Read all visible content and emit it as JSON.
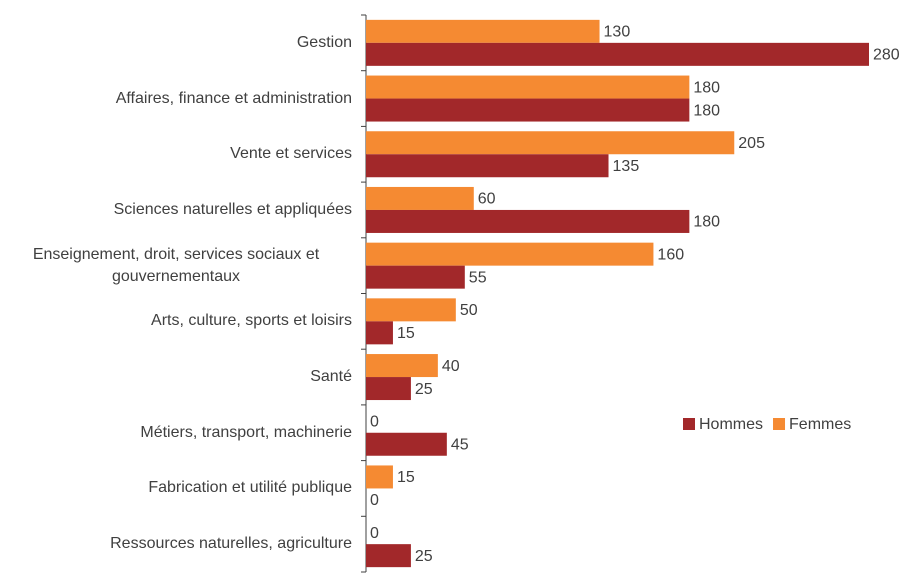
{
  "chart_data": {
    "type": "hbar",
    "categories": [
      "Gestion",
      "Affaires, finance et administration",
      "Vente et services",
      "Sciences naturelles et appliquées",
      "Enseignement, droit, services sociaux et gouvernementaux",
      "Arts, culture, sports et loisirs",
      "Santé",
      "Métiers, transport, machinerie",
      "Fabrication et utilité publique",
      "Ressources naturelles, agriculture"
    ],
    "series": [
      {
        "name": "Femmes",
        "color": "#f58a32",
        "values": [
          130,
          180,
          205,
          60,
          160,
          50,
          40,
          0,
          15,
          0
        ]
      },
      {
        "name": "Hommes",
        "color": "#a2282a",
        "values": [
          280,
          180,
          135,
          180,
          55,
          15,
          25,
          45,
          0,
          25
        ]
      }
    ],
    "xlim": [
      0,
      280
    ],
    "legend": "right"
  }
}
